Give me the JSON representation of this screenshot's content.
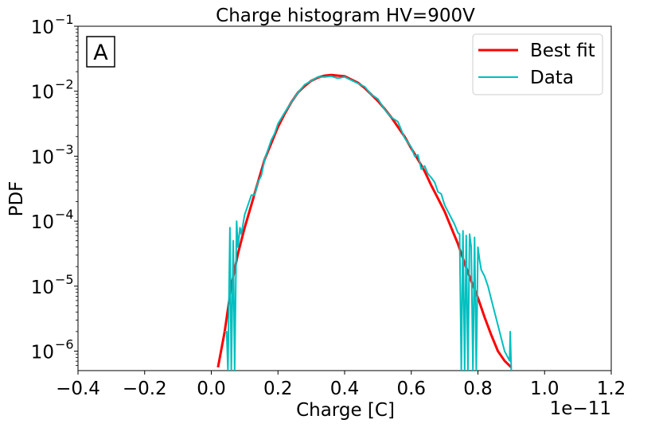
{
  "chart_data": {
    "type": "line",
    "title": "Charge histogram HV=900V",
    "xlabel": "Charge [C]",
    "ylabel": "PDF",
    "x_offset_label": "1e−11",
    "panel_label": "A",
    "xlim": [
      -0.4,
      1.2
    ],
    "ylim_log10": [
      -6.3,
      -1
    ],
    "yscale": "log",
    "x_ticks": [
      {
        "value": -0.4,
        "label": "−0.4"
      },
      {
        "value": -0.2,
        "label": "−0.2"
      },
      {
        "value": 0.0,
        "label": "0.0"
      },
      {
        "value": 0.2,
        "label": "0.2"
      },
      {
        "value": 0.4,
        "label": "0.4"
      },
      {
        "value": 0.6,
        "label": "0.6"
      },
      {
        "value": 0.8,
        "label": "0.8"
      },
      {
        "value": 1.0,
        "label": "1.0"
      },
      {
        "value": 1.2,
        "label": "1.2"
      }
    ],
    "y_ticks": [
      {
        "exp": -6,
        "label": "−6"
      },
      {
        "exp": -5,
        "label": "−5"
      },
      {
        "exp": -4,
        "label": "−4"
      },
      {
        "exp": -3,
        "label": "−3"
      },
      {
        "exp": -2,
        "label": "−2"
      },
      {
        "exp": -1,
        "label": "−1"
      }
    ],
    "y_tick_base": "10",
    "legend": {
      "location": "upper right"
    },
    "series": [
      {
        "name": "Best fit",
        "color": "#ff0000",
        "x": [
          0.02,
          0.04,
          0.06,
          0.08,
          0.1,
          0.12,
          0.14,
          0.16,
          0.18,
          0.2,
          0.22,
          0.24,
          0.26,
          0.28,
          0.3,
          0.32,
          0.34,
          0.36,
          0.38,
          0.4,
          0.42,
          0.44,
          0.46,
          0.48,
          0.5,
          0.52,
          0.54,
          0.56,
          0.58,
          0.6,
          0.62,
          0.64,
          0.66,
          0.68,
          0.7,
          0.72,
          0.74,
          0.76,
          0.78,
          0.8,
          0.82,
          0.84,
          0.86,
          0.88,
          0.9
        ],
        "log10_y": [
          -6.25,
          -5.7,
          -5.0,
          -4.5,
          -4.1,
          -3.75,
          -3.4,
          -3.05,
          -2.8,
          -2.55,
          -2.35,
          -2.17,
          -2.02,
          -1.92,
          -1.84,
          -1.79,
          -1.76,
          -1.75,
          -1.76,
          -1.77,
          -1.82,
          -1.87,
          -1.95,
          -2.05,
          -2.15,
          -2.27,
          -2.4,
          -2.55,
          -2.7,
          -2.88,
          -3.05,
          -3.23,
          -3.45,
          -3.65,
          -3.85,
          -4.1,
          -4.35,
          -4.65,
          -4.92,
          -5.18,
          -5.48,
          -5.75,
          -6.0,
          -6.15,
          -6.25
        ]
      },
      {
        "name": "Data",
        "color": "#00bfbf",
        "x": [
          0.04,
          0.046,
          0.05,
          0.056,
          0.06,
          0.066,
          0.07,
          0.076,
          0.08,
          0.086,
          0.09,
          0.1,
          0.11,
          0.12,
          0.13,
          0.14,
          0.15,
          0.16,
          0.17,
          0.18,
          0.19,
          0.2,
          0.22,
          0.24,
          0.26,
          0.28,
          0.3,
          0.32,
          0.34,
          0.36,
          0.38,
          0.4,
          0.42,
          0.44,
          0.46,
          0.48,
          0.5,
          0.52,
          0.54,
          0.56,
          0.58,
          0.6,
          0.61,
          0.62,
          0.63,
          0.64,
          0.65,
          0.66,
          0.67,
          0.68,
          0.69,
          0.7,
          0.71,
          0.72,
          0.73,
          0.74,
          0.745,
          0.75,
          0.755,
          0.76,
          0.765,
          0.77,
          0.775,
          0.78,
          0.785,
          0.79,
          0.795,
          0.8,
          0.805,
          0.81,
          0.82,
          0.83,
          0.84,
          0.85,
          0.86,
          0.87,
          0.88,
          0.89,
          0.895,
          0.897,
          0.9
        ],
        "log10_y": [
          -5.7,
          -5.7,
          -6.3,
          -4.1,
          -6.3,
          -4.3,
          -6.3,
          -4.0,
          -4.4,
          -4.1,
          -4.2,
          -3.9,
          -3.75,
          -3.6,
          -3.6,
          -3.4,
          -3.3,
          -3.05,
          -2.9,
          -2.75,
          -2.65,
          -2.5,
          -2.33,
          -2.17,
          -2.02,
          -1.9,
          -1.84,
          -1.78,
          -1.78,
          -1.77,
          -1.8,
          -1.78,
          -1.83,
          -1.88,
          -1.93,
          -2.05,
          -2.12,
          -2.28,
          -2.4,
          -2.47,
          -2.72,
          -2.86,
          -3.0,
          -2.98,
          -3.2,
          -3.15,
          -3.27,
          -3.33,
          -3.4,
          -3.55,
          -3.58,
          -3.75,
          -3.85,
          -3.95,
          -4.05,
          -4.18,
          -4.2,
          -6.3,
          -4.15,
          -6.3,
          -4.22,
          -6.3,
          -4.2,
          -4.4,
          -6.3,
          -4.25,
          -6.3,
          -4.4,
          -4.6,
          -4.75,
          -4.85,
          -5.0,
          -5.2,
          -5.4,
          -5.6,
          -5.8,
          -6.0,
          -6.1,
          -6.15,
          -5.7,
          -6.3
        ]
      }
    ]
  }
}
